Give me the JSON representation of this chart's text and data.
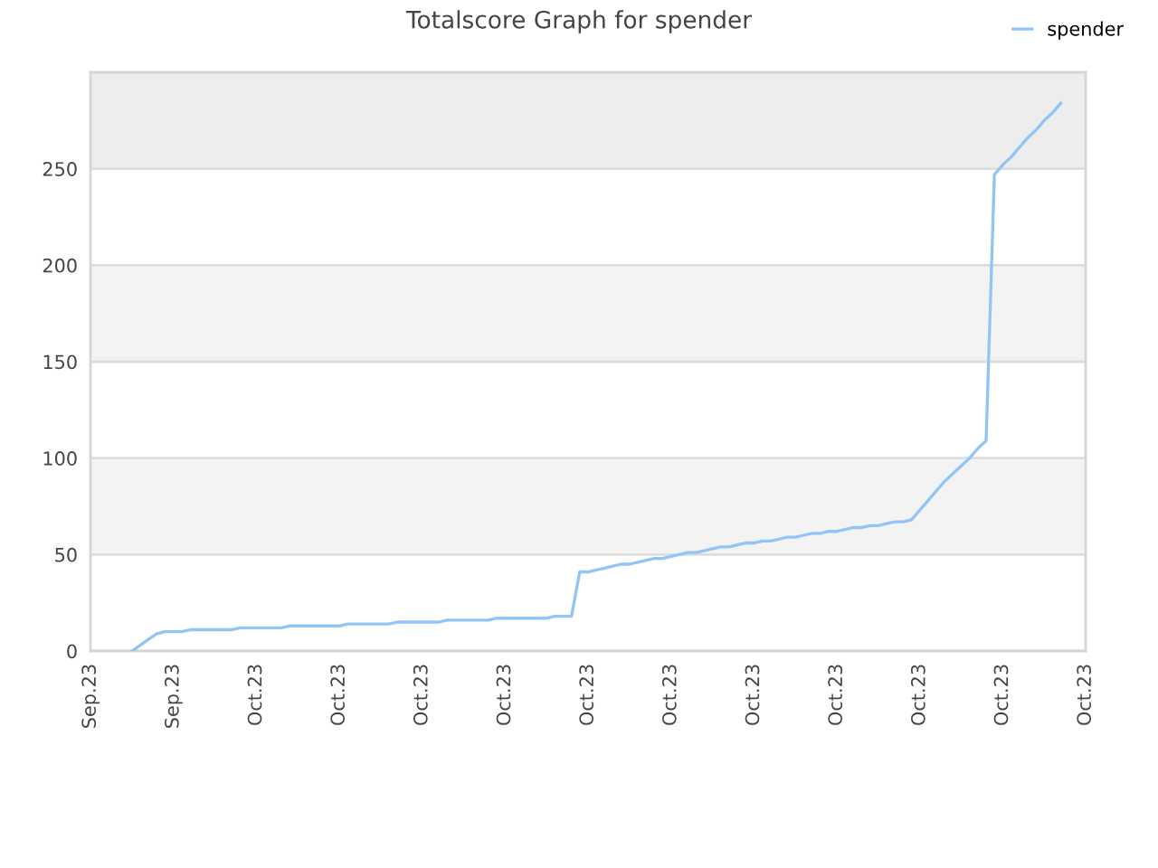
{
  "chart_data": {
    "type": "line",
    "title": "Totalscore Graph for spender",
    "categories": [
      "Sep.23",
      null,
      null,
      null,
      null,
      null,
      null,
      null,
      null,
      null,
      "Sep.23",
      null,
      null,
      null,
      null,
      null,
      null,
      null,
      null,
      null,
      "Oct.23",
      null,
      null,
      null,
      null,
      null,
      null,
      null,
      null,
      null,
      "Oct.23",
      null,
      null,
      null,
      null,
      null,
      null,
      null,
      null,
      null,
      "Oct.23",
      null,
      null,
      null,
      null,
      null,
      null,
      null,
      null,
      null,
      "Oct.23",
      null,
      null,
      null,
      null,
      null,
      null,
      null,
      null,
      null,
      "Oct.23",
      null,
      null,
      null,
      null,
      null,
      null,
      null,
      null,
      null,
      "Oct.23",
      null,
      null,
      null,
      null,
      null,
      null,
      null,
      null,
      null,
      "Oct.23",
      null,
      null,
      null,
      null,
      null,
      null,
      null,
      null,
      null,
      "Oct.23",
      null,
      null,
      null,
      null,
      null,
      null,
      null,
      null,
      null,
      "Oct.23",
      null,
      null,
      null,
      null,
      null,
      null,
      null,
      null,
      null,
      "Oct.23",
      null,
      null,
      null,
      null,
      null,
      null,
      null,
      null,
      null,
      "Oct.23"
    ],
    "series": [
      {
        "name": "spender",
        "color": "#92c5f5",
        "values": [
          null,
          null,
          null,
          null,
          null,
          0,
          3,
          6,
          9,
          10,
          10,
          10,
          11,
          11,
          11,
          11,
          11,
          11,
          12,
          12,
          12,
          12,
          12,
          12,
          13,
          13,
          13,
          13,
          13,
          13,
          13,
          14,
          14,
          14,
          14,
          14,
          14,
          15,
          15,
          15,
          15,
          15,
          15,
          16,
          16,
          16,
          16,
          16,
          16,
          17,
          17,
          17,
          17,
          17,
          17,
          17,
          18,
          18,
          18,
          41,
          41,
          42,
          43,
          44,
          45,
          45,
          46,
          47,
          48,
          48,
          49,
          50,
          51,
          51,
          52,
          53,
          54,
          54,
          55,
          56,
          56,
          57,
          57,
          58,
          59,
          59,
          60,
          61,
          61,
          62,
          62,
          63,
          64,
          64,
          65,
          65,
          66,
          67,
          67,
          68,
          73,
          78,
          83,
          88,
          92,
          96,
          100,
          105,
          109,
          247,
          252,
          256,
          261,
          266,
          270,
          275,
          279,
          284,
          null,
          null,
          null
        ]
      }
    ],
    "ylim": [
      0,
      300
    ],
    "yticks": [
      0,
      50,
      100,
      150,
      200,
      250
    ],
    "bands": [
      {
        "axis": "y",
        "from": 50,
        "to": 100,
        "color": "#f3f3f3"
      },
      {
        "axis": "y",
        "from": 150,
        "to": 200,
        "color": "#f3f3f3"
      },
      {
        "axis": "y",
        "from": 250,
        "to": 300,
        "color": "#ededed"
      }
    ],
    "grid": "y",
    "legend": "top right",
    "marker": "none",
    "line_style": "solid"
  }
}
